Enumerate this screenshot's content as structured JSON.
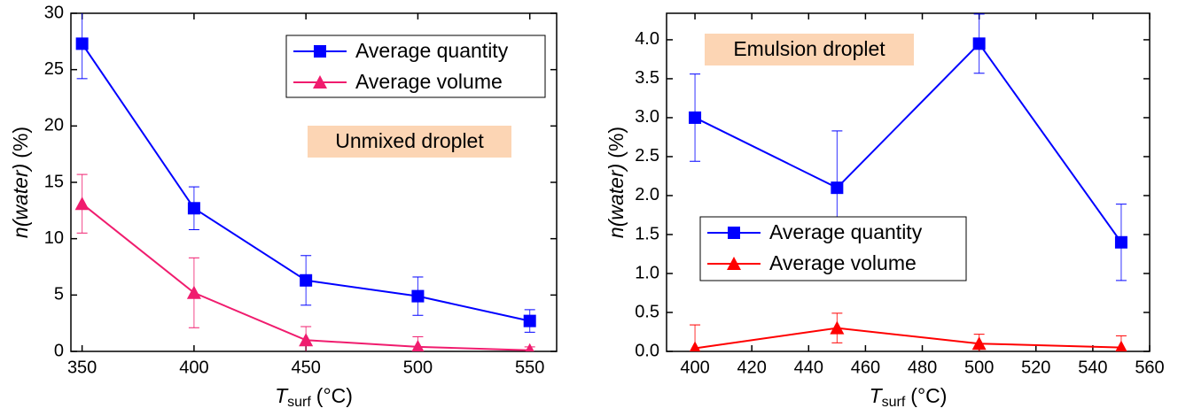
{
  "chart_data": [
    {
      "type": "line",
      "x": [
        350,
        400,
        450,
        500,
        550
      ],
      "xlim": [
        345,
        562
      ],
      "xticks": [
        350,
        400,
        450,
        500,
        550
      ],
      "ylim": [
        0,
        30
      ],
      "yticks": [
        0,
        5,
        10,
        15,
        20,
        25,
        30
      ],
      "xlabel": "T",
      "xlabel_sub": "surf",
      "xlabel_unit": "(°C)",
      "ylabel": "n(water)",
      "ylabel_unit": "(%)",
      "annotation": "Unmixed droplet",
      "legend": "upper right",
      "series": [
        {
          "name": "Average quantity",
          "color": "#0000ff",
          "marker": "square",
          "values": [
            27.3,
            12.7,
            6.3,
            4.9,
            2.7
          ],
          "errors": [
            3.1,
            1.9,
            2.2,
            1.7,
            1.0
          ]
        },
        {
          "name": "Average volume",
          "color": "#f01c6e",
          "marker": "triangle",
          "values": [
            13.1,
            5.2,
            1.0,
            0.4,
            0.1
          ],
          "errors": [
            2.6,
            3.1,
            1.2,
            0.9,
            0.3
          ]
        }
      ]
    },
    {
      "type": "line",
      "x": [
        400,
        450,
        500,
        550
      ],
      "xlim": [
        390,
        560
      ],
      "xticks": [
        400,
        420,
        440,
        460,
        480,
        500,
        520,
        540,
        560
      ],
      "ylim": [
        0,
        4.34
      ],
      "yticks": [
        {
          "value": 0,
          "label": "0.0"
        },
        {
          "value": 0.5,
          "label": "0.5"
        },
        {
          "value": 1,
          "label": "1.0"
        },
        {
          "value": 1.5,
          "label": "1.5"
        },
        {
          "value": 2,
          "label": "2.0"
        },
        {
          "value": 2.5,
          "label": "2.5"
        },
        {
          "value": 3,
          "label": "3.0"
        },
        {
          "value": 3.5,
          "label": "3.5"
        },
        {
          "value": 4,
          "label": "4.0"
        }
      ],
      "xlabel": "T",
      "xlabel_sub": "surf",
      "xlabel_unit": "(°C)",
      "ylabel": "n(water)",
      "ylabel_unit": "(%)",
      "annotation": "Emulsion droplet",
      "legend": "center left",
      "series": [
        {
          "name": "Average quantity",
          "color": "#0000ff",
          "marker": "square",
          "values": [
            3.0,
            2.1,
            3.95,
            1.4
          ],
          "errors": [
            0.56,
            0.73,
            0.38,
            0.49
          ]
        },
        {
          "name": "Average volume",
          "color": "#ff0000",
          "marker": "triangle",
          "values": [
            0.04,
            0.3,
            0.1,
            0.05
          ],
          "errors": [
            0.3,
            0.19,
            0.12,
            0.15
          ]
        }
      ]
    }
  ]
}
